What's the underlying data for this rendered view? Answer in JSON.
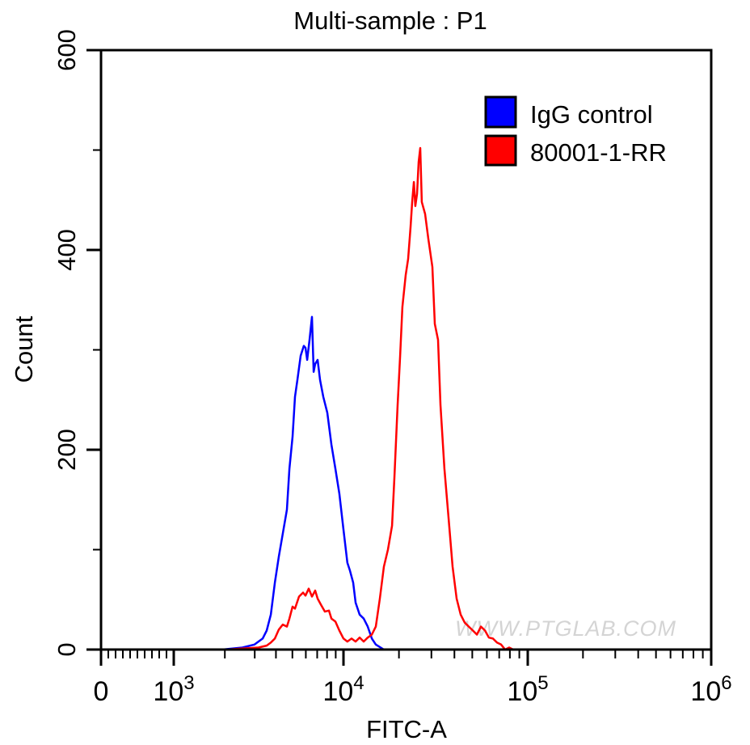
{
  "chart_data": {
    "type": "line",
    "title": "Multi-sample : P1",
    "xlabel": "FITC-A",
    "ylabel": "Count",
    "x_scale": "biexponential",
    "xlim": [
      0,
      1000000
    ],
    "ylim": [
      0,
      600
    ],
    "x_tick_labels": [
      {
        "value": 0,
        "base": "0",
        "exp": ""
      },
      {
        "value": 1000,
        "base": "10",
        "exp": "3"
      },
      {
        "value": 10000,
        "base": "10",
        "exp": "4"
      },
      {
        "value": 100000,
        "base": "10",
        "exp": "5"
      },
      {
        "value": 1000000,
        "base": "10",
        "exp": "6"
      }
    ],
    "y_ticks": [
      0,
      200,
      400,
      600
    ],
    "y_minor_ticks": [
      100,
      300,
      500
    ],
    "grid": false,
    "legend_position": "top-right",
    "watermark": "WWW.PTGLAB.COM",
    "series": [
      {
        "name": "IgG control",
        "color": "#0000ff",
        "points": [
          [
            1930,
            0
          ],
          [
            2540,
            2
          ],
          [
            2990,
            5
          ],
          [
            3340,
            11
          ],
          [
            3530,
            19
          ],
          [
            3730,
            35
          ],
          [
            3940,
            67
          ],
          [
            4160,
            93
          ],
          [
            4390,
            116
          ],
          [
            4640,
            140
          ],
          [
            4800,
            181
          ],
          [
            5010,
            213
          ],
          [
            5180,
            253
          ],
          [
            5350,
            270
          ],
          [
            5590,
            294
          ],
          [
            5840,
            304
          ],
          [
            5970,
            302
          ],
          [
            6110,
            290
          ],
          [
            6310,
            310
          ],
          [
            6520,
            333
          ],
          [
            6670,
            278
          ],
          [
            6810,
            286
          ],
          [
            7040,
            290
          ],
          [
            7280,
            270
          ],
          [
            7600,
            253
          ],
          [
            8030,
            237
          ],
          [
            8490,
            205
          ],
          [
            8960,
            181
          ],
          [
            9460,
            156
          ],
          [
            10000,
            120
          ],
          [
            10500,
            87
          ],
          [
            10840,
            79
          ],
          [
            11290,
            67
          ],
          [
            11630,
            47
          ],
          [
            12240,
            35
          ],
          [
            12870,
            31
          ],
          [
            13540,
            23
          ],
          [
            14250,
            11
          ],
          [
            14970,
            5
          ],
          [
            16570,
            0
          ]
        ]
      },
      {
        "name": "80001-1-RR",
        "color": "#ff0000",
        "points": [
          [
            2040,
            0
          ],
          [
            2540,
            1
          ],
          [
            3160,
            2
          ],
          [
            3530,
            4
          ],
          [
            3730,
            7
          ],
          [
            3940,
            11
          ],
          [
            4160,
            20
          ],
          [
            4390,
            25
          ],
          [
            4640,
            23
          ],
          [
            4800,
            31
          ],
          [
            5010,
            43
          ],
          [
            5180,
            41
          ],
          [
            5470,
            53
          ],
          [
            5780,
            57
          ],
          [
            5970,
            54
          ],
          [
            6240,
            61
          ],
          [
            6520,
            53
          ],
          [
            6810,
            59
          ],
          [
            7040,
            51
          ],
          [
            7360,
            45
          ],
          [
            7770,
            38
          ],
          [
            8210,
            39
          ],
          [
            8490,
            31
          ],
          [
            8960,
            28
          ],
          [
            9460,
            19
          ],
          [
            10000,
            11
          ],
          [
            10500,
            8
          ],
          [
            11060,
            11
          ],
          [
            11630,
            8
          ],
          [
            12240,
            12
          ],
          [
            12870,
            8
          ],
          [
            13540,
            12
          ],
          [
            14250,
            15
          ],
          [
            14970,
            23
          ],
          [
            15750,
            51
          ],
          [
            16570,
            83
          ],
          [
            17430,
            100
          ],
          [
            18340,
            124
          ],
          [
            18890,
            172
          ],
          [
            19670,
            245
          ],
          [
            20290,
            294
          ],
          [
            20890,
            343
          ],
          [
            21770,
            375
          ],
          [
            22440,
            391
          ],
          [
            23120,
            423
          ],
          [
            23600,
            448
          ],
          [
            24090,
            468
          ],
          [
            24550,
            444
          ],
          [
            25060,
            456
          ],
          [
            25580,
            488
          ],
          [
            26110,
            502
          ],
          [
            26620,
            448
          ],
          [
            27730,
            436
          ],
          [
            28880,
            411
          ],
          [
            30370,
            383
          ],
          [
            31320,
            326
          ],
          [
            32590,
            310
          ],
          [
            33590,
            245
          ],
          [
            35320,
            181
          ],
          [
            37150,
            132
          ],
          [
            39090,
            83
          ],
          [
            41120,
            51
          ],
          [
            43260,
            35
          ],
          [
            45500,
            27
          ],
          [
            47860,
            23
          ],
          [
            50350,
            19
          ],
          [
            52960,
            15
          ],
          [
            55710,
            23
          ],
          [
            58600,
            19
          ],
          [
            61540,
            12
          ],
          [
            64740,
            11
          ],
          [
            68100,
            7
          ],
          [
            71630,
            5
          ],
          [
            75350,
            0
          ],
          [
            79260,
            2
          ],
          [
            83370,
            0
          ]
        ]
      }
    ]
  }
}
